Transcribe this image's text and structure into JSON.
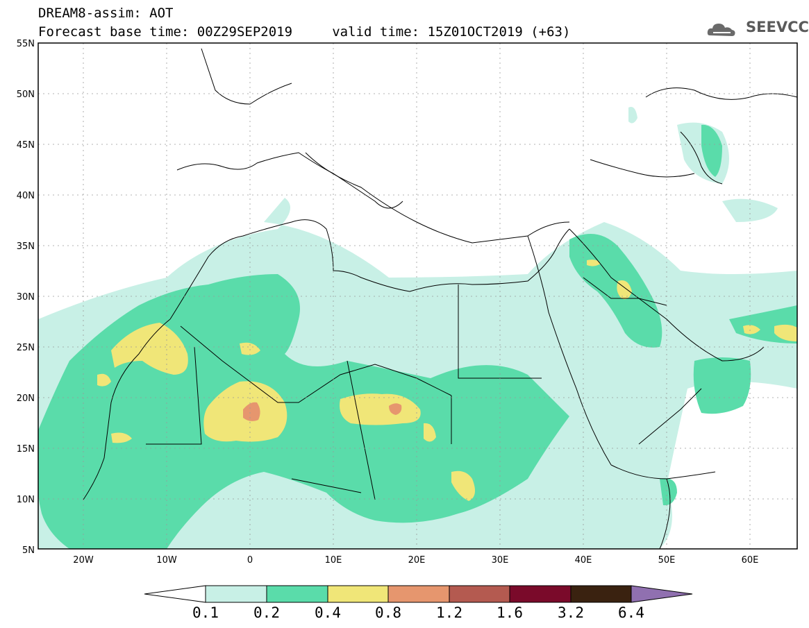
{
  "title": {
    "line1": "DREAM8-assim: AOT",
    "line2": "Forecast base time: 00Z29SEP2019     valid time: 15Z01OCT2019 (+63)"
  },
  "logo": {
    "text": "SEEVCCC",
    "icon": "cloud-icon"
  },
  "map": {
    "lon_range": [
      -25,
      65
    ],
    "lat_range": [
      5,
      55
    ],
    "lat_ticks": [
      "55N",
      "50N",
      "45N",
      "40N",
      "35N",
      "30N",
      "25N",
      "20N",
      "15N",
      "10N",
      "5N"
    ],
    "lon_ticks": [
      "20W",
      "10W",
      "0",
      "10E",
      "20E",
      "30E",
      "40E",
      "50E",
      "60E"
    ],
    "grid": true,
    "colors": {
      "land_line": "#000000",
      "level_0_1": "#c8f0e6",
      "level_0_2": "#5adcaa",
      "level_0_4": "#f0e678",
      "level_0_8": "#e6966e",
      "level_1_2": "#b45a50"
    }
  },
  "colorbar": {
    "labels": [
      "0.1",
      "0.2",
      "0.4",
      "0.8",
      "1.2",
      "1.6",
      "3.2",
      "6.4"
    ],
    "colors": [
      "#c8f0e6",
      "#5adcaa",
      "#f0e678",
      "#e6966e",
      "#b45a50",
      "#7a0a2a",
      "#3a2210",
      "#9070b0"
    ]
  }
}
